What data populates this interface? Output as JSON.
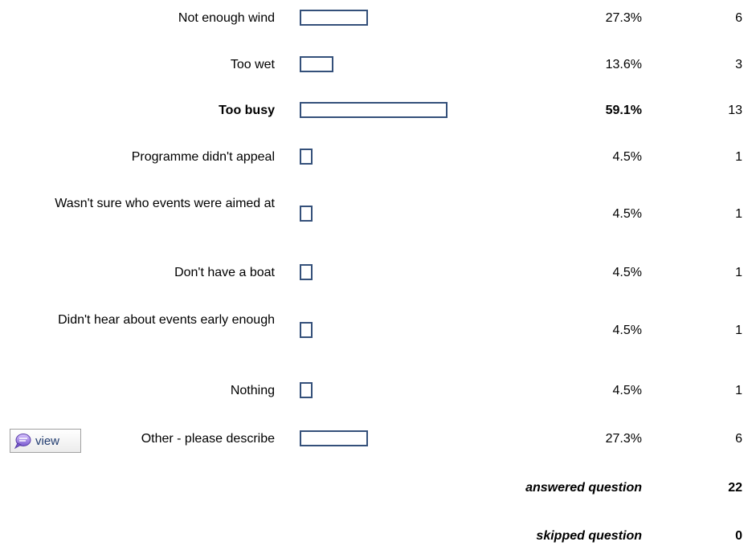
{
  "chart_data": {
    "type": "bar",
    "orientation": "horizontal",
    "categories": [
      "Not enough wind",
      "Too wet",
      "Too busy",
      "Programme didn't appeal",
      "Wasn't sure who events were aimed at",
      "Don't have a boat",
      "Didn't hear about events early enough",
      "Nothing",
      "Other - please describe"
    ],
    "series": [
      {
        "values": [
          27.3,
          13.6,
          59.1,
          4.5,
          4.5,
          4.5,
          4.5,
          4.5,
          27.3
        ]
      }
    ],
    "percent_labels": [
      "27.3%",
      "13.6%",
      "59.1%",
      "4.5%",
      "4.5%",
      "4.5%",
      "4.5%",
      "4.5%",
      "27.3%"
    ],
    "counts": [
      "6",
      "3",
      "13",
      "1",
      "1",
      "1",
      "1",
      "1",
      "6"
    ],
    "highlighted_index": 2
  },
  "view_button": {
    "label": "view"
  },
  "summary": {
    "answered_label": "answered question",
    "answered_value": "22",
    "skipped_label": "skipped question",
    "skipped_value": "0"
  },
  "colors": {
    "bar_border": "#34507a"
  }
}
